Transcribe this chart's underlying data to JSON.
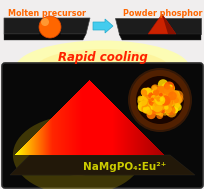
{
  "bg_color": "#f0eeee",
  "title_top_left": "Molten precursor",
  "title_top_right": "Powder phosphor",
  "title_middle": "Rapid cooling",
  "title_bottom": "NaMgPO₄:Eu²⁺",
  "top_left_text_color": "#ff6600",
  "top_right_text_color": "#ff6600",
  "rapid_cooling_color": "#ff2200",
  "bottom_label_color": "#cccc00",
  "arrow_color": "#44ccee",
  "panel_bg": "#080808",
  "sphere_color": "#ff6600",
  "cone_color": "#aa2200",
  "plate_dark": "#141414",
  "plate_side": "#0a0a0a"
}
